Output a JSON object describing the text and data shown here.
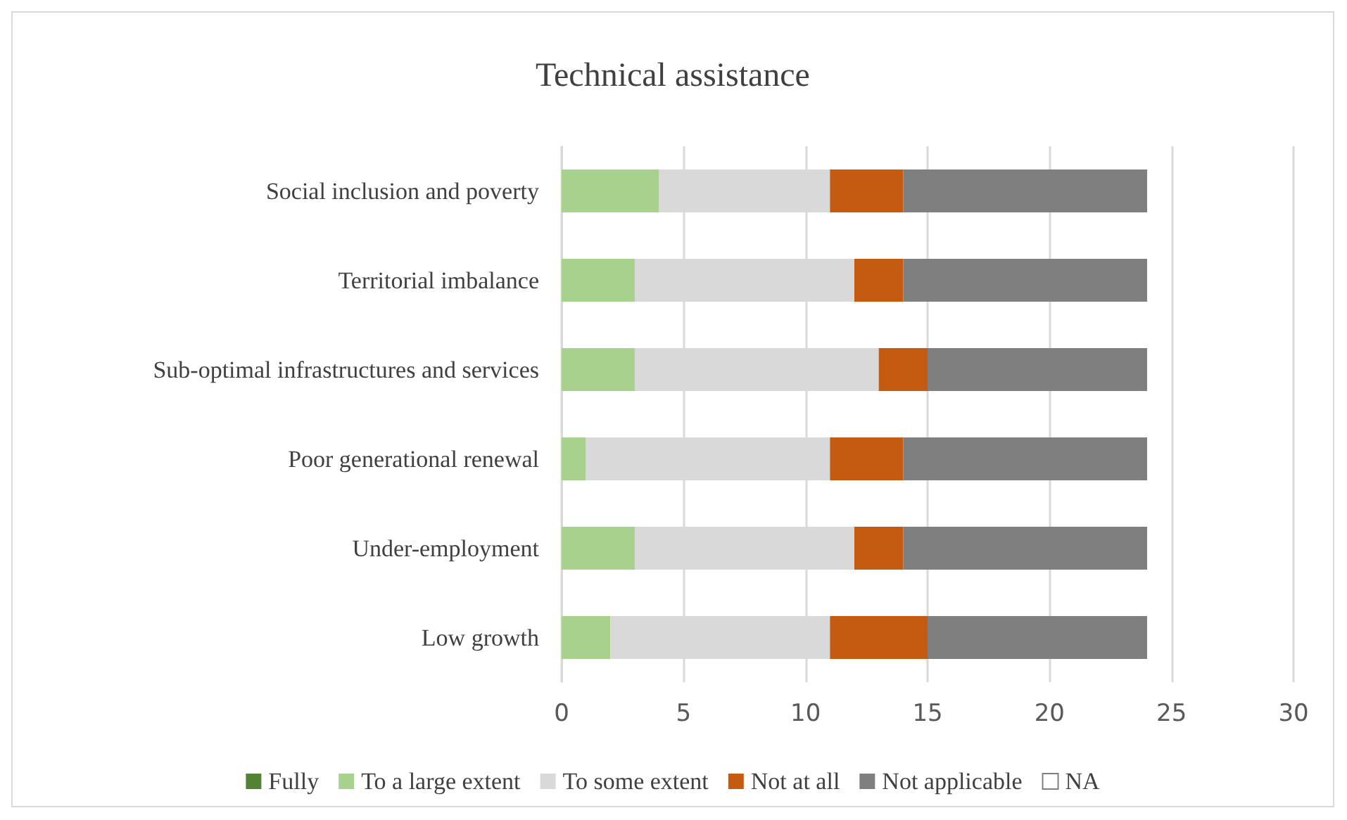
{
  "chart_data": {
    "type": "bar",
    "orientation": "horizontal",
    "stacked": true,
    "title": "Technical assistance",
    "categories": [
      "Social inclusion and poverty",
      "Territorial imbalance",
      "Sub-optimal infrastructures and services",
      "Poor generational renewal",
      "Under-employment",
      "Low growth"
    ],
    "series": [
      {
        "name": "Fully",
        "color": "#548235",
        "values": [
          0,
          0,
          0,
          0,
          0,
          0
        ]
      },
      {
        "name": "To a large extent",
        "color": "#a9d18e",
        "values": [
          4,
          3,
          3,
          1,
          3,
          2
        ]
      },
      {
        "name": "To some extent",
        "color": "#d9d9d9",
        "values": [
          7,
          9,
          10,
          10,
          9,
          9
        ]
      },
      {
        "name": "Not at all",
        "color": "#c55a11",
        "values": [
          3,
          2,
          2,
          3,
          2,
          4
        ]
      },
      {
        "name": "Not applicable",
        "color": "#7f7f7f",
        "values": [
          10,
          10,
          9,
          10,
          10,
          9
        ]
      },
      {
        "name": "NA",
        "color": "#ffffff",
        "values": [
          0,
          0,
          0,
          0,
          0,
          0
        ]
      }
    ],
    "xlim": [
      0,
      30
    ],
    "xticks": [
      0,
      5,
      10,
      15,
      20,
      25,
      30
    ],
    "grid": "x",
    "legend": "bottom"
  }
}
